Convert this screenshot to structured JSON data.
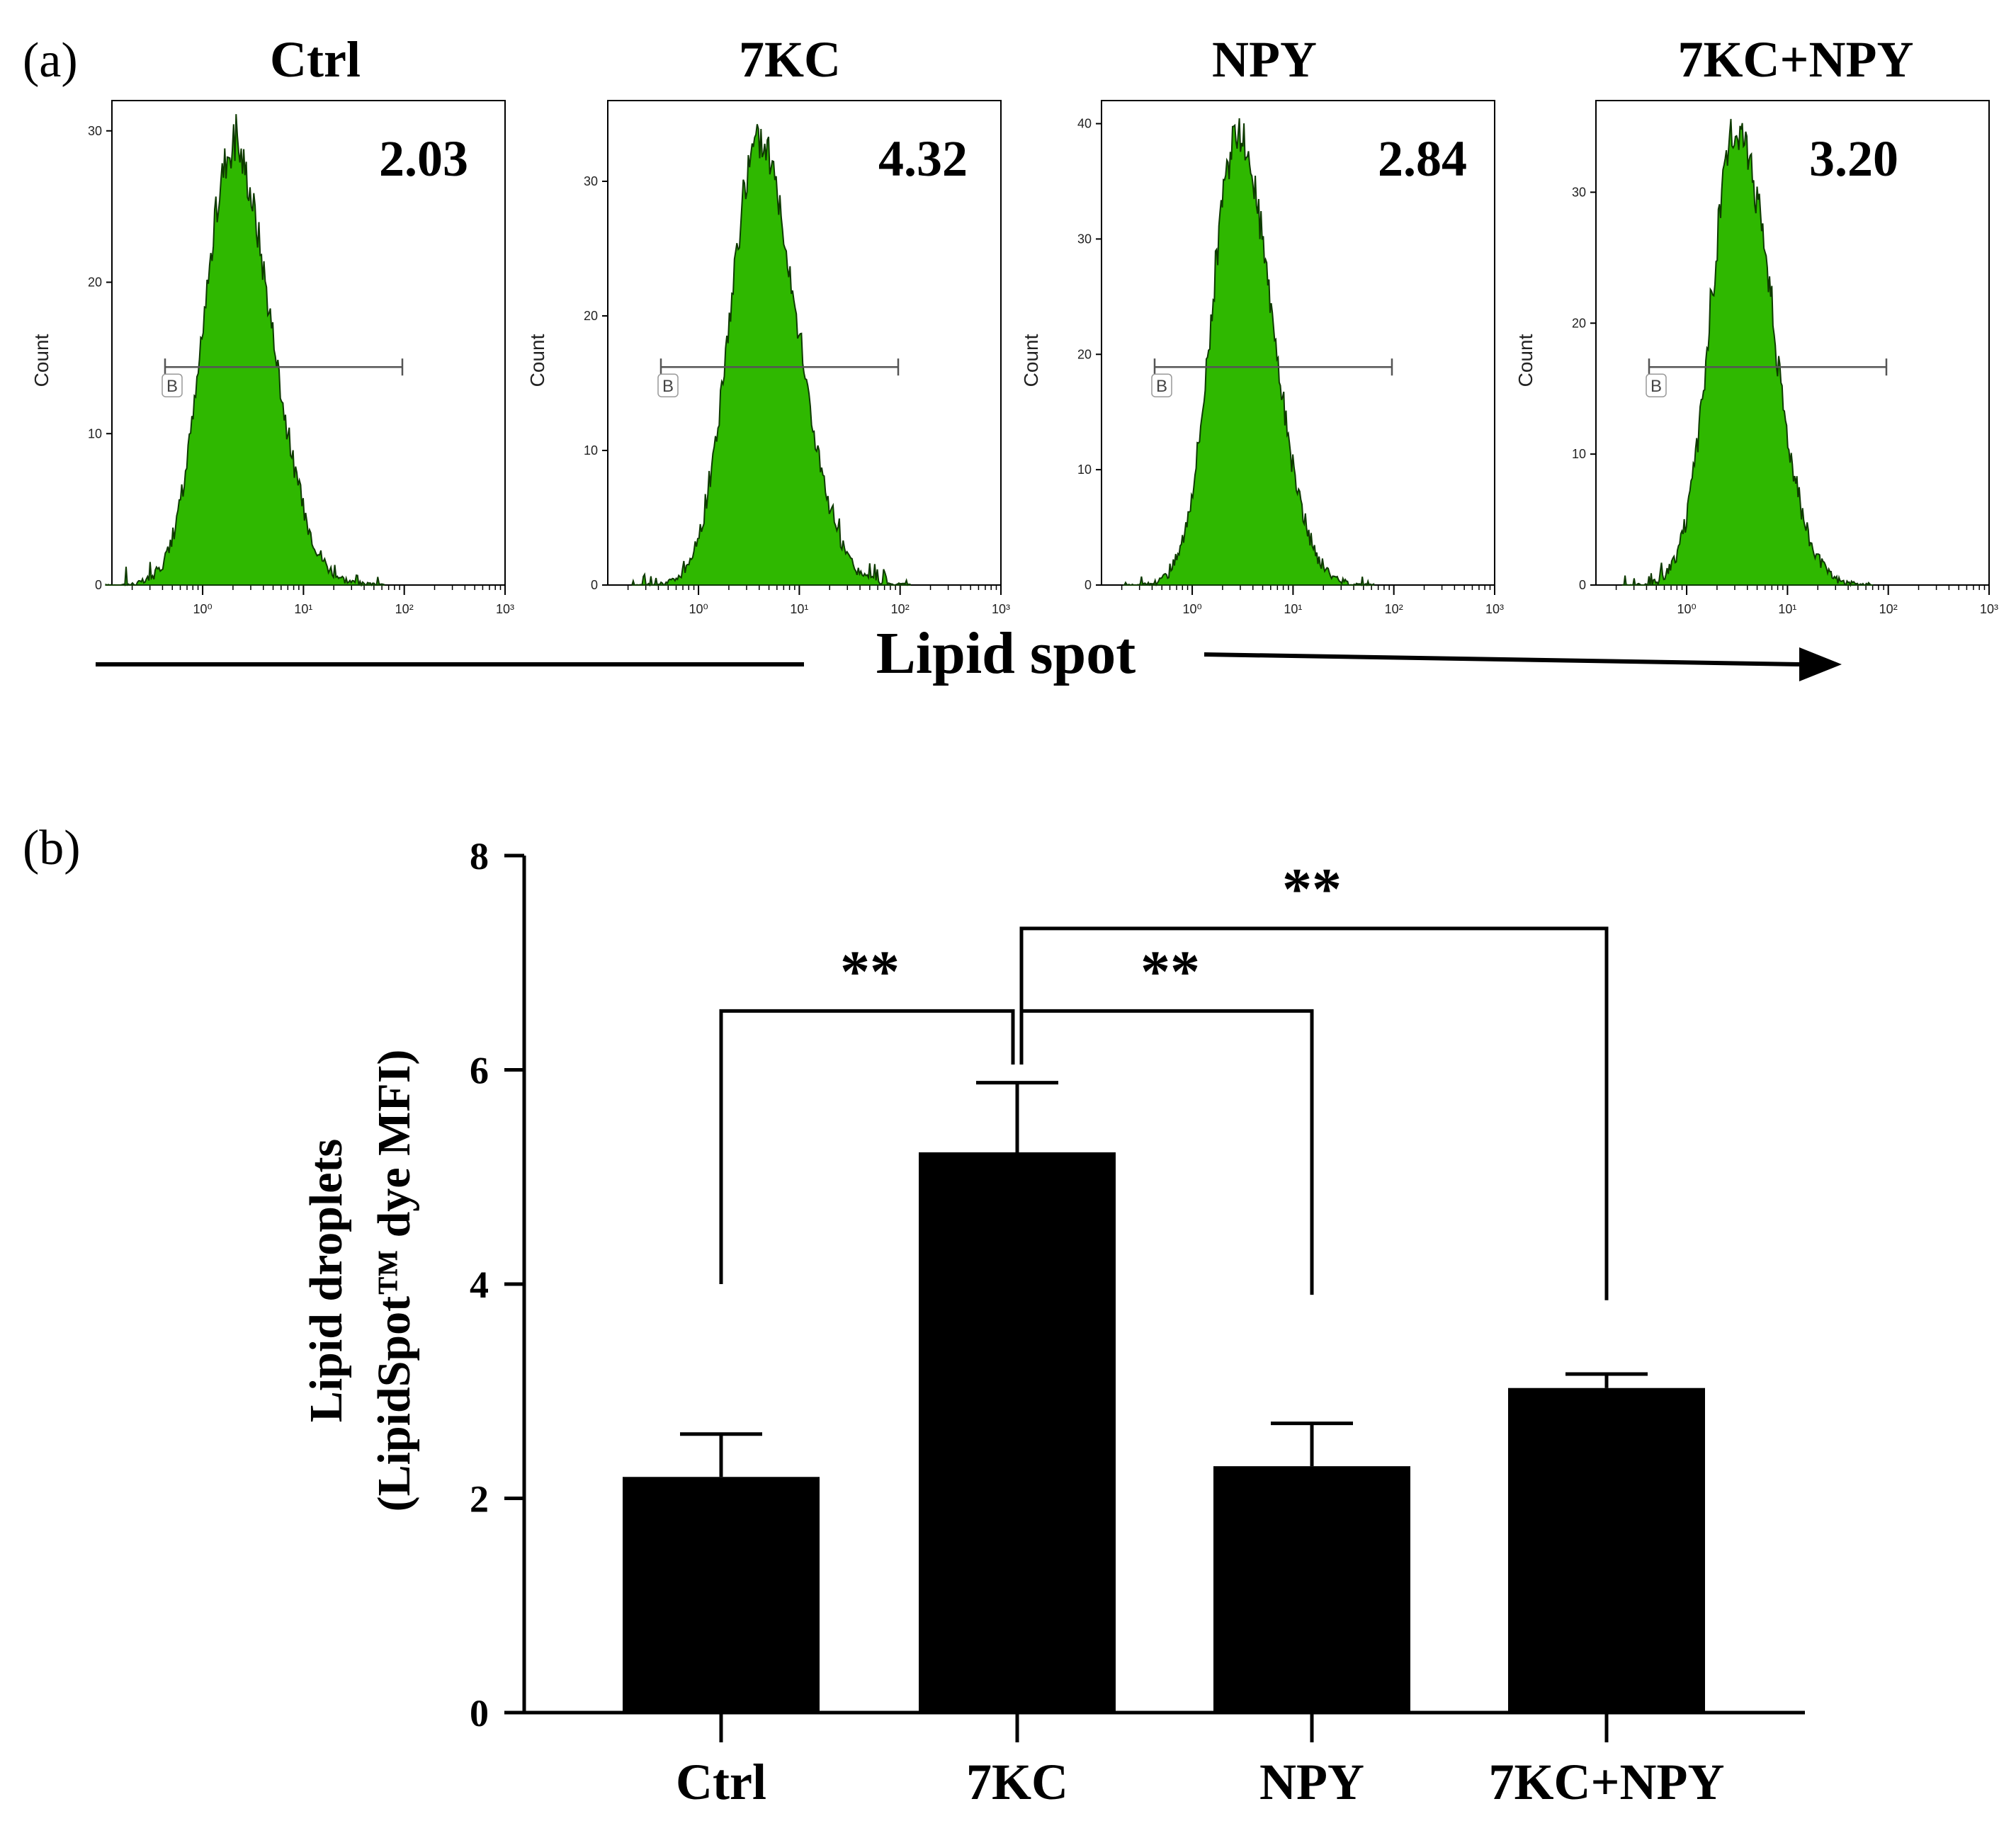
{
  "chart_data": [
    {
      "type": "histogram",
      "panel": "(a)",
      "x_axis_title": "Lipid spot",
      "y_axis_label": "Count",
      "gate_label": "B",
      "x_tick_labels": [
        "10⁰",
        "10¹",
        "10²",
        "10³"
      ],
      "subplots": [
        {
          "title": "Ctrl",
          "value": "2.03",
          "y_ticks": [
            0,
            10,
            20,
            30
          ],
          "y_max": 32,
          "peak": 29,
          "center_log": 0.3,
          "width_log": 0.3
        },
        {
          "title": "7KC",
          "value": "4.32",
          "y_ticks": [
            0,
            10,
            20,
            30
          ],
          "y_max": 36,
          "peak": 33,
          "center_log": 0.6,
          "width_log": 0.3
        },
        {
          "title": "NPY",
          "value": "2.84",
          "y_ticks": [
            0,
            10,
            20,
            30,
            40
          ],
          "y_max": 42,
          "peak": 39,
          "center_log": 0.45,
          "width_log": 0.27
        },
        {
          "title": "7KC+NPY",
          "value": "3.20",
          "y_ticks": [
            0,
            10,
            20,
            30
          ],
          "y_max": 37,
          "peak": 35,
          "center_log": 0.5,
          "width_log": 0.27
        }
      ]
    },
    {
      "type": "bar",
      "panel": "(b)",
      "categories": [
        "Ctrl",
        "7KC",
        "NPY",
        "7KC+NPY"
      ],
      "values": [
        2.2,
        5.23,
        2.3,
        3.03
      ],
      "errors": [
        0.4,
        0.65,
        0.4,
        0.13
      ],
      "ylim": [
        0,
        8
      ],
      "y_ticks": [
        0,
        2,
        4,
        6,
        8
      ],
      "ylabel_line1": "Lipid droplets",
      "ylabel_line2": "(LipidSpot™ dye MFI)",
      "bar_color": "#000000",
      "significance": [
        {
          "from": "Ctrl",
          "to": "7KC",
          "label": "**",
          "level": 6.55
        },
        {
          "from": "7KC",
          "to": "NPY",
          "label": "**",
          "level": 6.55
        },
        {
          "from": "7KC",
          "to": "7KC+NPY",
          "label": "**",
          "level": 7.32
        }
      ]
    }
  ],
  "colors": {
    "histogram_fill": "#2fb800",
    "histogram_edge": "#0e3a00",
    "axis": "#000000"
  }
}
